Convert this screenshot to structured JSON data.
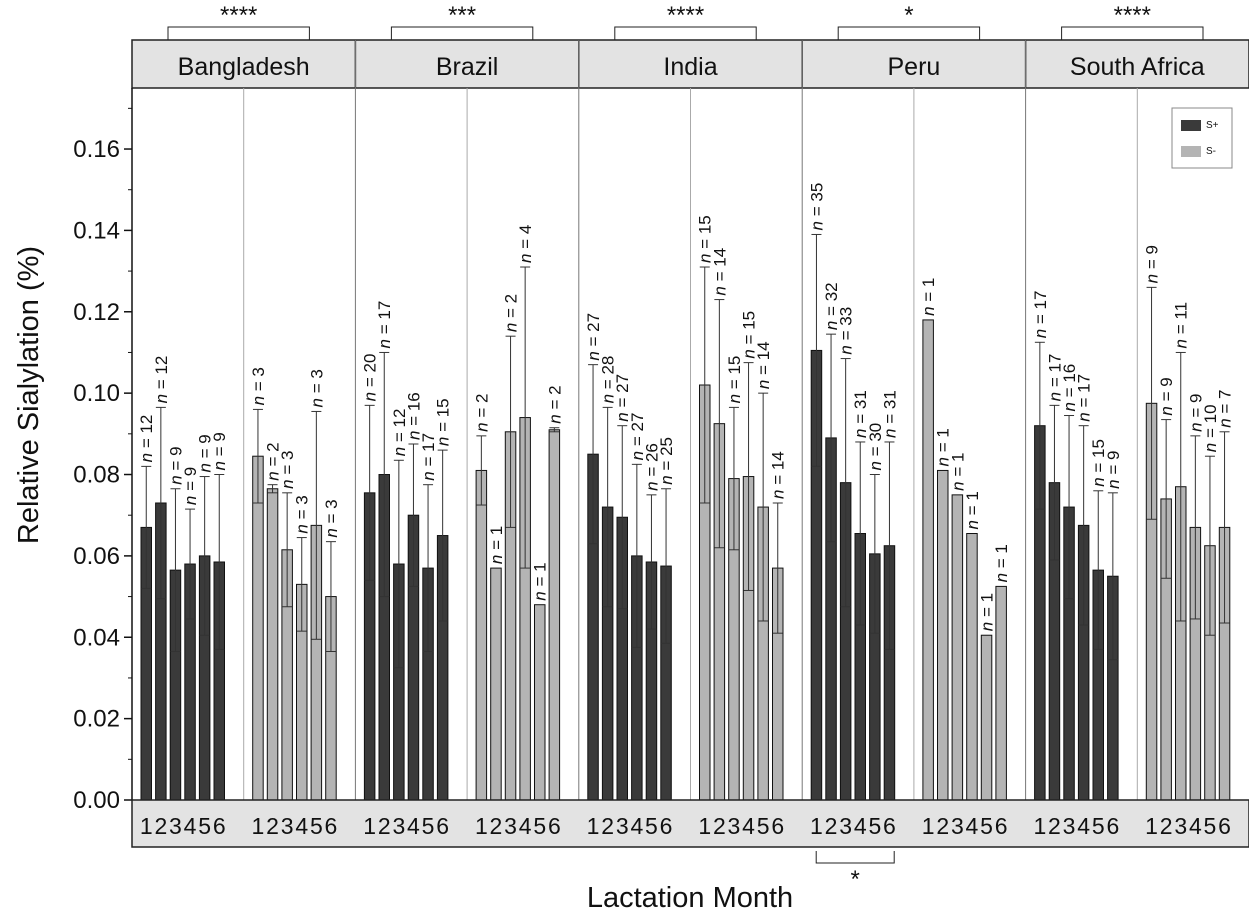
{
  "chart_data": {
    "type": "bar",
    "xlabel": "Lactation Month",
    "ylabel": "Relative Sialylation (%)",
    "ylim": [
      0,
      0.175
    ],
    "yticks": [
      "0.00",
      "0.02",
      "0.04",
      "0.06",
      "0.08",
      "0.10",
      "0.12",
      "0.14",
      "0.16"
    ],
    "ytick_values": [
      0,
      0.02,
      0.04,
      0.06,
      0.08,
      0.1,
      0.12,
      0.14,
      0.16
    ],
    "months": [
      "1",
      "2",
      "3",
      "4",
      "5",
      "6"
    ],
    "n_prefix": "n",
    "n_equals": " = ",
    "legend": [
      {
        "name": "S+",
        "color": "#3a3a3a"
      },
      {
        "name": "S-",
        "color": "#b4b4b4"
      }
    ],
    "legend_position": "top-right",
    "panels": [
      {
        "label": "Bangladesh",
        "significance": "****",
        "groups": [
          {
            "name": "S+",
            "values": [
              0.067,
              0.073,
              0.0565,
              0.058,
              0.06,
              0.0585
            ],
            "err": [
              0.015,
              0.0235,
              0.02,
              0.0135,
              0.0195,
              0.0215
            ],
            "n": [
              "12",
              "12",
              "9",
              "9",
              "9",
              "9"
            ]
          },
          {
            "name": "S-",
            "values": [
              0.0845,
              0.0765,
              0.0615,
              0.053,
              0.0675,
              0.05
            ],
            "err": [
              0.0115,
              0.001,
              0.014,
              0.0115,
              0.028,
              0.0135
            ],
            "n": [
              "3",
              "2",
              "3",
              "3",
              "3",
              "3"
            ]
          }
        ]
      },
      {
        "label": "Brazil",
        "significance": "***",
        "groups": [
          {
            "name": "S+",
            "values": [
              0.0755,
              0.08,
              0.058,
              0.07,
              0.057,
              0.065
            ],
            "err": [
              0.0215,
              0.03,
              0.0255,
              0.0175,
              0.0205,
              0.021
            ],
            "n": [
              "20",
              "17",
              "12",
              "16",
              "17",
              "15"
            ]
          },
          {
            "name": "S-",
            "values": [
              0.081,
              0.057,
              0.0905,
              0.094,
              0.048,
              0.091
            ],
            "err": [
              0.0085,
              0.0,
              0.0235,
              0.037,
              0.0,
              0.0005
            ],
            "n": [
              "2",
              "1",
              "2",
              "4",
              "1",
              "2"
            ]
          }
        ]
      },
      {
        "label": "India",
        "significance": "****",
        "groups": [
          {
            "name": "S+",
            "values": [
              0.085,
              0.072,
              0.0695,
              0.06,
              0.0585,
              0.0575
            ],
            "err": [
              0.022,
              0.0245,
              0.0225,
              0.0225,
              0.0165,
              0.019
            ],
            "n": [
              "27",
              "28",
              "27",
              "27",
              "26",
              "25"
            ]
          },
          {
            "name": "S-",
            "values": [
              0.102,
              0.0925,
              0.079,
              0.0795,
              0.072,
              0.057
            ],
            "err": [
              0.029,
              0.0305,
              0.0175,
              0.028,
              0.028,
              0.016
            ],
            "n": [
              "15",
              "14",
              "15",
              "15",
              "14",
              "14"
            ]
          }
        ]
      },
      {
        "label": "Peru",
        "significance": "*",
        "bottom_significance": "*",
        "groups": [
          {
            "name": "S+",
            "values": [
              0.1105,
              0.089,
              0.078,
              0.0655,
              0.0605,
              0.0625
            ],
            "err": [
              0.0285,
              0.0255,
              0.0305,
              0.0225,
              0.0195,
              0.0255
            ],
            "n": [
              "35",
              "32",
              "33",
              "31",
              "30",
              "31"
            ]
          },
          {
            "name": "S-",
            "values": [
              0.118,
              0.081,
              0.075,
              0.0655,
              0.0405,
              0.0525
            ],
            "err": [
              0.0,
              0.0,
              0.0,
              0.0,
              0.0,
              0.0
            ],
            "n": [
              "1",
              "1",
              "1",
              "1",
              "1",
              "1"
            ]
          }
        ]
      },
      {
        "label": "South Africa",
        "significance": "****",
        "groups": [
          {
            "name": "S+",
            "values": [
              0.092,
              0.078,
              0.072,
              0.0675,
              0.0565,
              0.055
            ],
            "err": [
              0.0205,
              0.019,
              0.0225,
              0.0245,
              0.0195,
              0.0205
            ],
            "n": [
              "17",
              "17",
              "16",
              "17",
              "15",
              "9"
            ]
          },
          {
            "name": "S-",
            "values": [
              0.0975,
              0.074,
              0.077,
              0.067,
              0.0625,
              0.067
            ],
            "err": [
              0.0285,
              0.0195,
              0.033,
              0.0225,
              0.022,
              0.0235
            ],
            "n": [
              "9",
              "9",
              "11",
              "9",
              "10",
              "7"
            ]
          }
        ]
      }
    ]
  }
}
